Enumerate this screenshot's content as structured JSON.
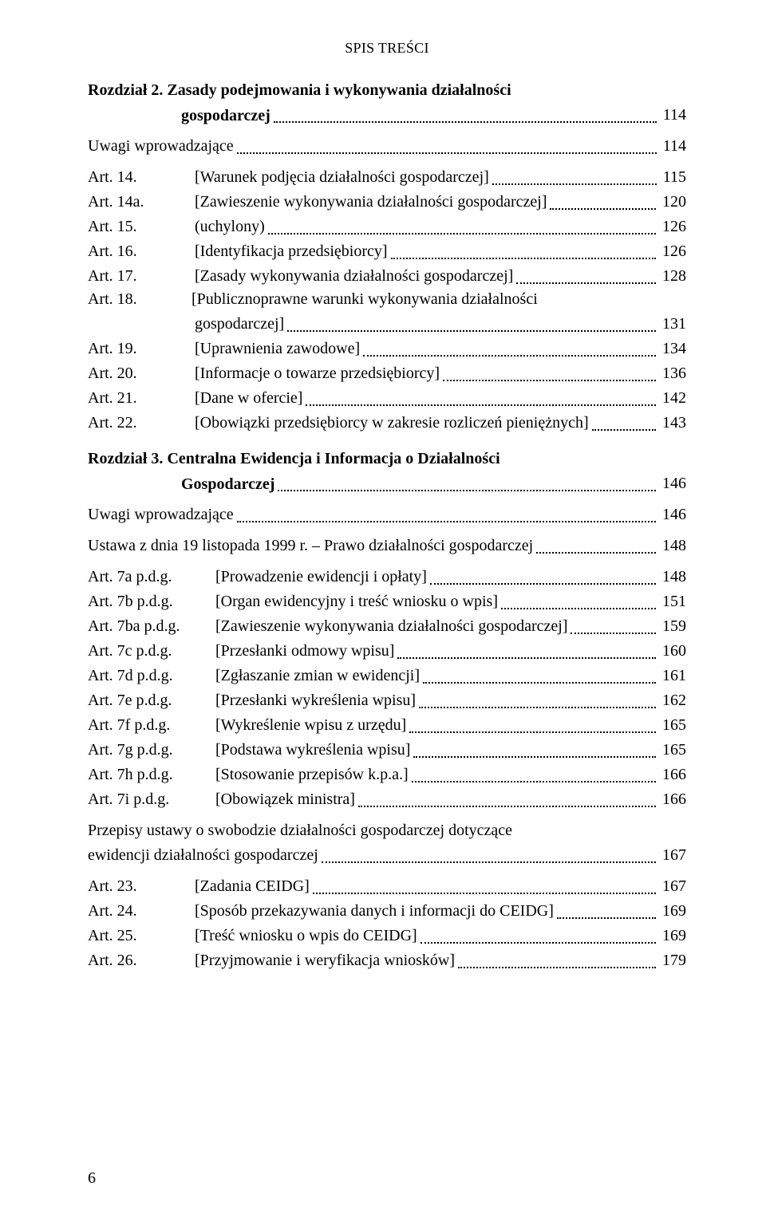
{
  "header": "SPIS TREŚCI",
  "pageNumber": "6",
  "chapter2": {
    "prefix": "Rozdział 2. ",
    "titleLine1": "Zasady podejmowania i wykonywania działalności",
    "titleLine2": "gospodarczej",
    "page": "114"
  },
  "ch2_intro": {
    "label": "Uwagi wprowadzające",
    "page": "114"
  },
  "ch2_arts": [
    {
      "label": "Art. 14.",
      "title": "[Warunek podjęcia działalności gospodarczej]",
      "page": "115"
    },
    {
      "label": "Art. 14a.",
      "title": "[Zawieszenie wykonywania działalności gospodarczej]",
      "page": "120"
    },
    {
      "label": "Art. 15.",
      "title": "(uchylony)",
      "page": "126"
    },
    {
      "label": "Art. 16.",
      "title": "[Identyfikacja przedsiębiorcy]",
      "page": "126"
    },
    {
      "label": "Art. 17.",
      "title": "[Zasady wykonywania działalności gospodarczej]",
      "page": "128"
    }
  ],
  "ch2_art18": {
    "label": "Art. 18.",
    "titleLine1": "[Publicznoprawne warunki wykonywania działalności",
    "titleLine2": "gospodarczej]",
    "page": "131"
  },
  "ch2_arts_b": [
    {
      "label": "Art. 19.",
      "title": "[Uprawnienia zawodowe]",
      "page": "134"
    },
    {
      "label": "Art. 20.",
      "title": "[Informacje o towarze przedsiębiorcy]",
      "page": "136"
    },
    {
      "label": "Art. 21.",
      "title": "[Dane w ofercie]",
      "page": "142"
    },
    {
      "label": "Art. 22.",
      "title": "[Obowiązki przedsiębiorcy w zakresie rozliczeń pieniężnych]",
      "page": "143"
    }
  ],
  "chapter3": {
    "prefix": "Rozdział 3. ",
    "titleLine1": "Centralna Ewidencja i Informacja o Działalności",
    "titleLine2": "Gospodarczej",
    "page": "146"
  },
  "ch3_intro": {
    "label": "Uwagi wprowadzające",
    "page": "146"
  },
  "ch3_statute": {
    "label": "Ustawa z dnia 19 listopada 1999 r. – Prawo działalności gospodarczej",
    "page": "148"
  },
  "ch3_pdg": [
    {
      "label": "Art. 7a p.d.g.",
      "title": "[Prowadzenie ewidencji i opłaty]",
      "page": "148"
    },
    {
      "label": "Art. 7b p.d.g.",
      "title": "[Organ ewidencyjny i treść wniosku o wpis]",
      "page": "151"
    },
    {
      "label": "Art. 7ba p.d.g.",
      "title": "[Zawieszenie wykonywania działalności gospodarczej]",
      "page": "159"
    },
    {
      "label": "Art. 7c p.d.g.",
      "title": "[Przesłanki odmowy wpisu]",
      "page": "160"
    },
    {
      "label": "Art. 7d p.d.g.",
      "title": "[Zgłaszanie zmian w ewidencji]",
      "page": "161"
    },
    {
      "label": "Art. 7e p.d.g.",
      "title": "[Przesłanki wykreślenia wpisu]",
      "page": "162"
    },
    {
      "label": "Art. 7f p.d.g.",
      "title": "[Wykreślenie wpisu z urzędu]",
      "page": "165"
    },
    {
      "label": "Art. 7g p.d.g.",
      "title": "[Podstawa wykreślenia wpisu]",
      "page": "165"
    },
    {
      "label": "Art. 7h p.d.g.",
      "title": "[Stosowanie przepisów k.p.a.]",
      "page": "166"
    },
    {
      "label": "Art. 7i p.d.g.",
      "title": "[Obowiązek ministra]",
      "page": "166"
    }
  ],
  "ch3_transition": {
    "line1": "Przepisy ustawy o swobodzie działalności gospodarczej dotyczące",
    "line2": "ewidencji działalności gospodarczej",
    "page": "167"
  },
  "ch3_arts": [
    {
      "label": "Art. 23.",
      "title": "[Zadania CEIDG]",
      "page": "167"
    },
    {
      "label": "Art. 24.",
      "title": "[Sposób przekazywania danych i informacji do CEIDG]",
      "page": "169"
    },
    {
      "label": "Art. 25.",
      "title": "[Treść wniosku o wpis do CEIDG]",
      "page": "169"
    },
    {
      "label": "Art. 26.",
      "title": "[Przyjmowanie i weryfikacja wniosków]",
      "page": "179"
    }
  ]
}
